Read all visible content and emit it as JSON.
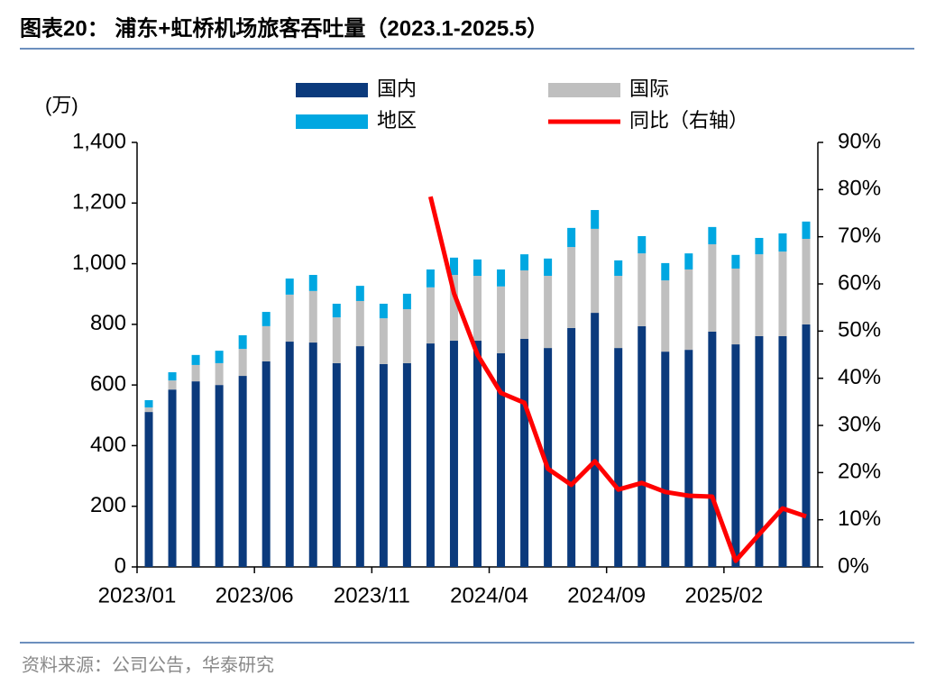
{
  "chart_data": {
    "type": "bar",
    "title": "图表20： 浦东+虹桥机场旅客吞吐量（2023.1-2025.5）",
    "y_unit_label": "(万)",
    "source": "资料来源：公司公告，华泰研究",
    "categories": [
      "2023/01",
      null,
      null,
      null,
      null,
      "2023/06",
      null,
      null,
      null,
      null,
      "2023/11",
      null,
      null,
      null,
      null,
      "2024/04",
      null,
      null,
      null,
      null,
      "2024/09",
      null,
      null,
      null,
      null,
      "2025/02",
      null,
      null,
      null
    ],
    "series": [
      {
        "name": "国内",
        "color": "#0b3a7c",
        "values": [
          511,
          585,
          612,
          600,
          630,
          678,
          743,
          740,
          672,
          728,
          669,
          672,
          737,
          746,
          746,
          705,
          752,
          722,
          788,
          838,
          722,
          794,
          710,
          716,
          776,
          734,
          761,
          761,
          800
        ]
      },
      {
        "name": "国际",
        "color": "#bfbfbf",
        "values": [
          15,
          30,
          54,
          72,
          89,
          116,
          155,
          170,
          151,
          149,
          151,
          178,
          185,
          217,
          214,
          220,
          226,
          238,
          267,
          277,
          238,
          240,
          235,
          265,
          288,
          250,
          270,
          279,
          282
        ]
      },
      {
        "name": "地区",
        "color": "#00a7e1",
        "values": [
          24,
          27,
          33,
          41,
          45,
          47,
          53,
          53,
          45,
          50,
          48,
          51,
          59,
          57,
          54,
          56,
          53,
          57,
          63,
          62,
          51,
          57,
          57,
          53,
          57,
          45,
          54,
          60,
          57
        ]
      },
      {
        "name": "同比（右轴）",
        "color": "#ff0000",
        "type": "line",
        "axis": "y2",
        "values": [
          null,
          null,
          null,
          null,
          null,
          null,
          null,
          null,
          null,
          null,
          null,
          null,
          78.5,
          58,
          45,
          36.9,
          34.8,
          20.8,
          17.4,
          22.4,
          16.4,
          17.8,
          15.9,
          15.1,
          14.9,
          1.3,
          6.9,
          12.4,
          10.7
        ]
      }
    ],
    "ylim": [
      0,
      1400
    ],
    "yticks": [
      0,
      200,
      400,
      600,
      800,
      {
        "value": 1000,
        "label": "1,000"
      },
      {
        "value": 1200,
        "label": "1,200"
      },
      {
        "value": 1400,
        "label": "1,400"
      }
    ],
    "y2lim": [
      0,
      90
    ],
    "y2ticks": [
      {
        "value": 0,
        "label": "0%"
      },
      {
        "value": 10,
        "label": "10%"
      },
      {
        "value": 20,
        "label": "20%"
      },
      {
        "value": 30,
        "label": "30%"
      },
      {
        "value": 40,
        "label": "40%"
      },
      {
        "value": 50,
        "label": "50%"
      },
      {
        "value": 60,
        "label": "60%"
      },
      {
        "value": 70,
        "label": "70%"
      },
      {
        "value": 80,
        "label": "80%"
      },
      {
        "value": 90,
        "label": "90%"
      }
    ],
    "stacked": true,
    "legend": "top"
  }
}
